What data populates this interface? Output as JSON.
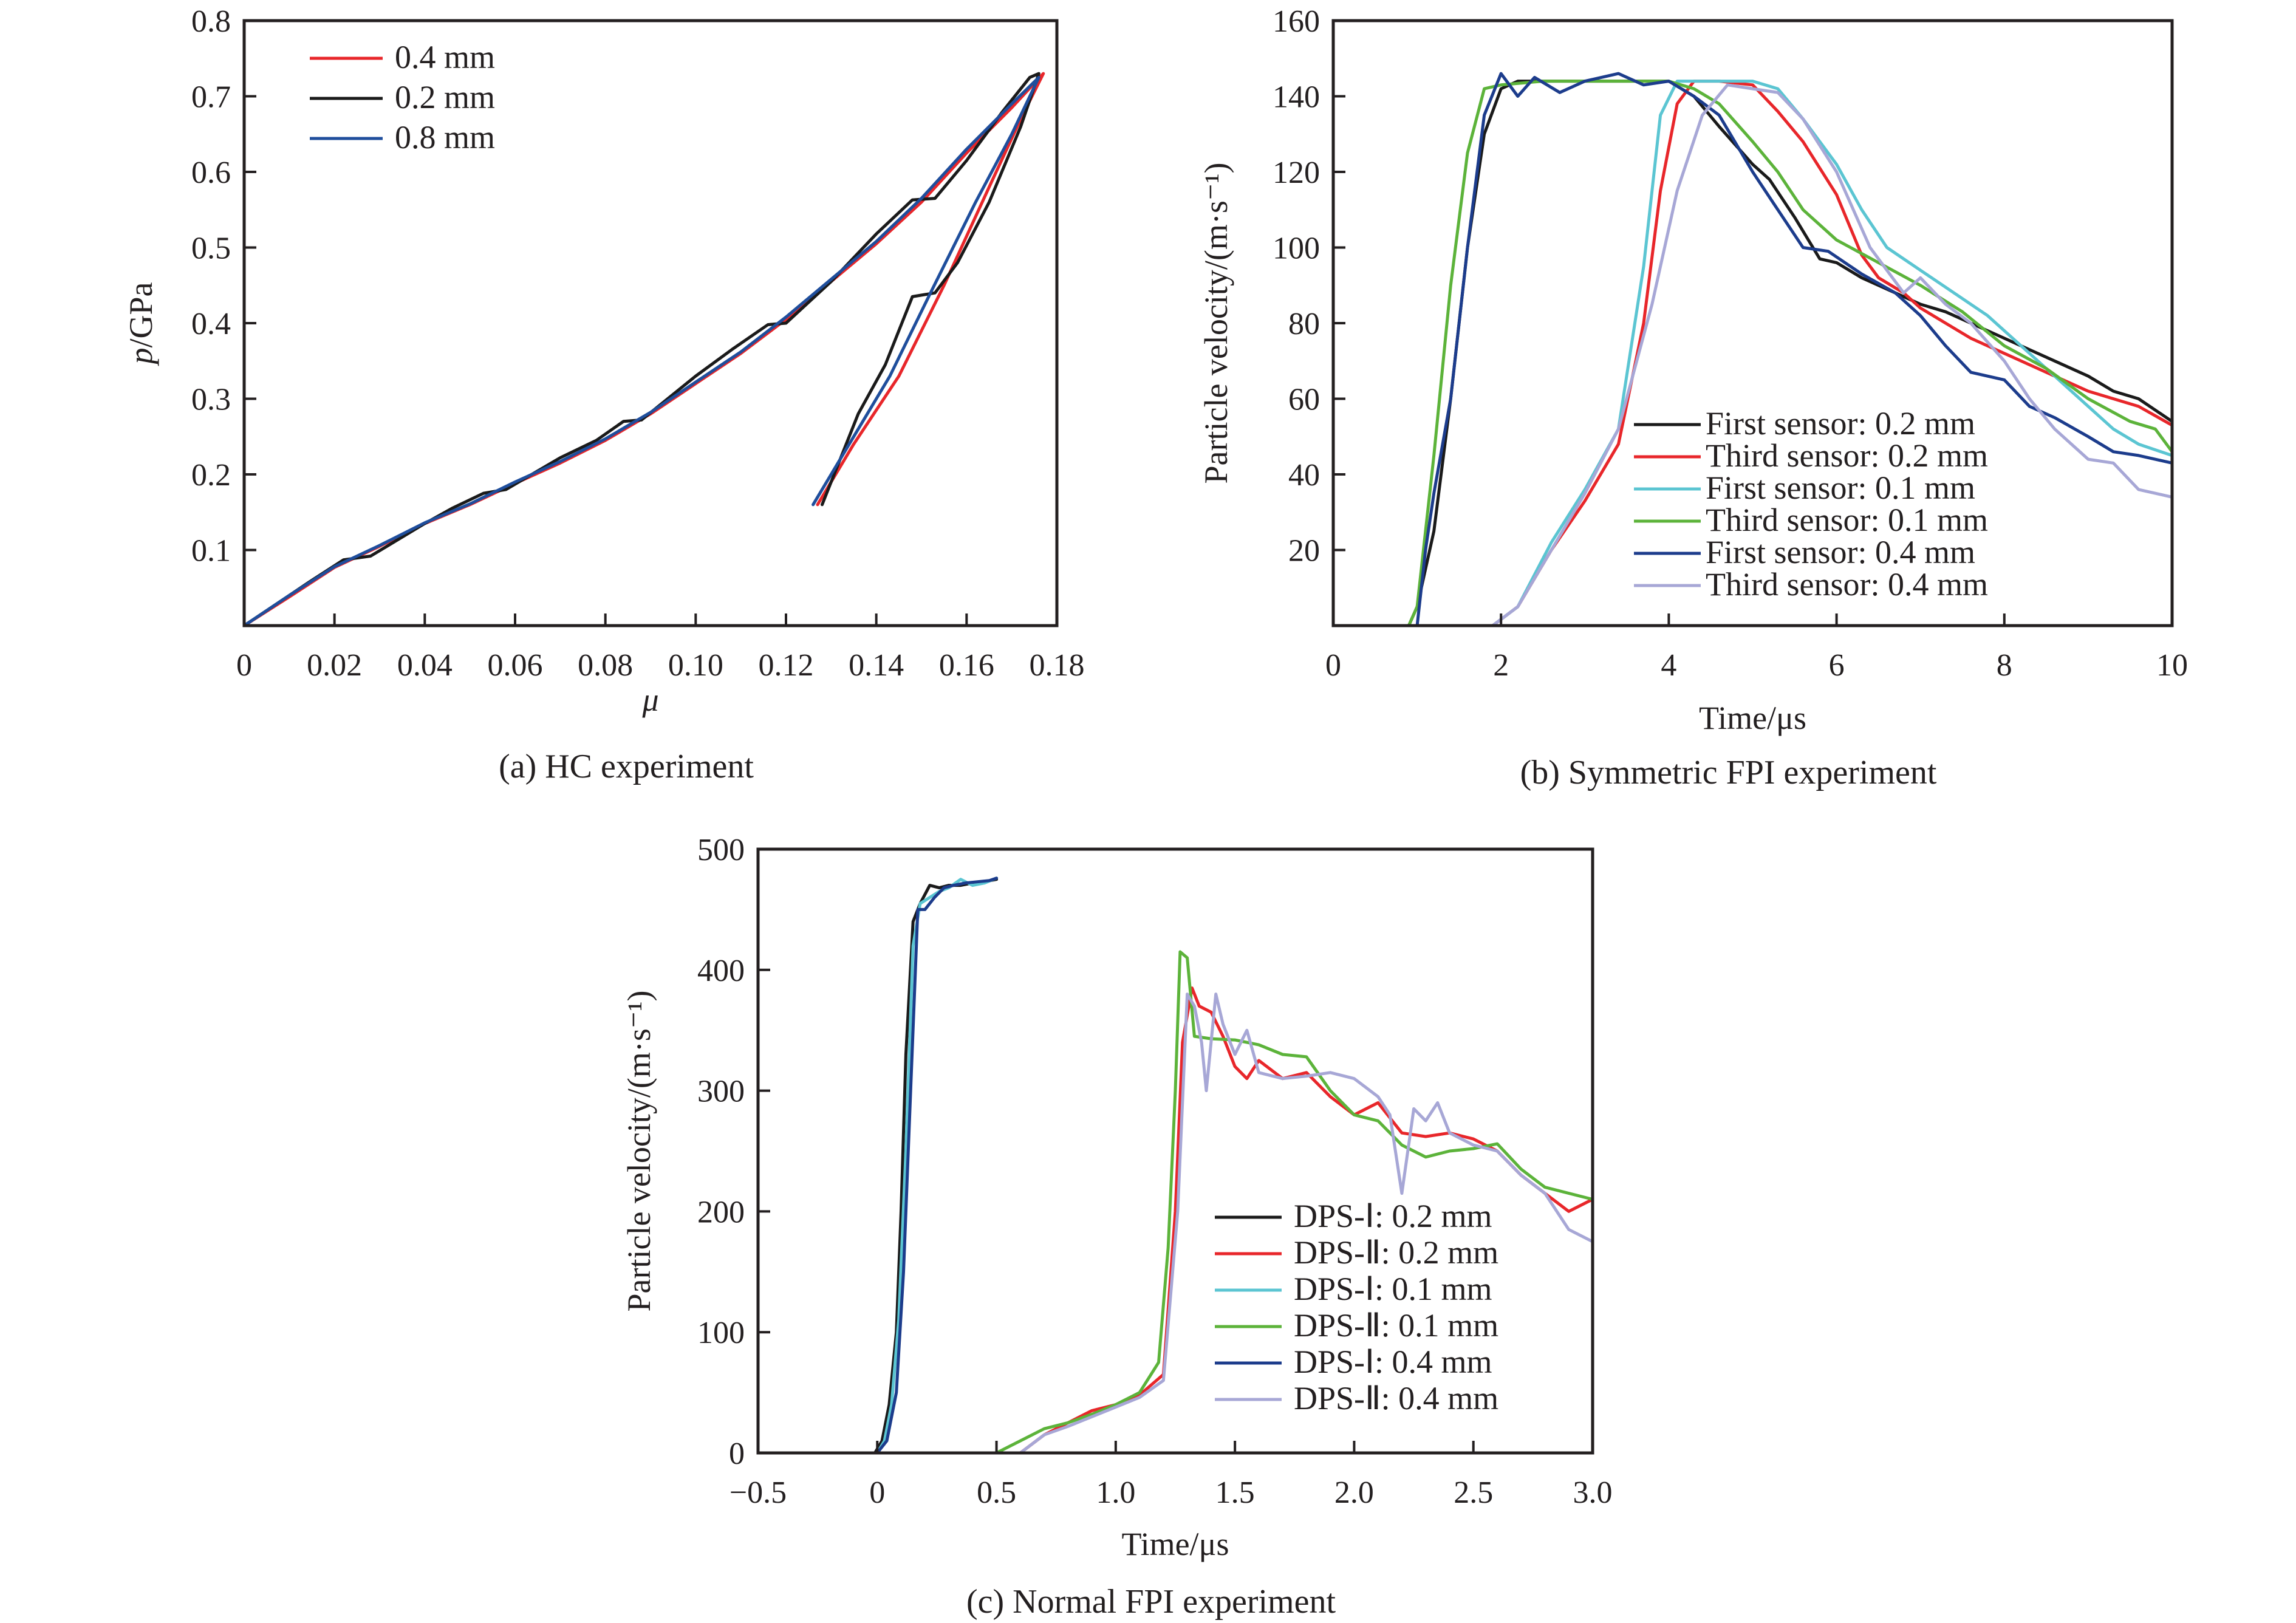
{
  "figure": {
    "colors": {
      "red": "#e8262a",
      "black": "#1a1a1a",
      "blue": "#1f4e9c",
      "cyan": "#5bc5d2",
      "green": "#5cb33a",
      "navy": "#1c3c8c",
      "lavender": "#a7a7d6",
      "axis": "#231f20"
    }
  },
  "chart_data": [
    {
      "id": "a",
      "type": "line",
      "caption": "(a) HC experiment",
      "title": "",
      "xlabel": "μ",
      "ylabel": "p/GPa",
      "ylabel_italic_part": "p",
      "ylabel_rest": "/GPa",
      "xlim": [
        0,
        0.18
      ],
      "ylim": [
        0,
        0.8
      ],
      "xticks": [
        0,
        0.02,
        0.04,
        0.06,
        0.08,
        0.1,
        0.12,
        0.14,
        0.16,
        0.18
      ],
      "xtick_labels": [
        "0",
        "0.02",
        "0.04",
        "0.06",
        "0.08",
        "0.10",
        "0.12",
        "0.14",
        "0.16",
        "0.18"
      ],
      "yticks": [
        0.1,
        0.2,
        0.3,
        0.4,
        0.5,
        0.6,
        0.7,
        0.8
      ],
      "ytick_labels": [
        "0.1",
        "0.2",
        "0.3",
        "0.4",
        "0.5",
        "0.6",
        "0.7",
        "0.8"
      ],
      "grid": false,
      "legend_position": "top-left",
      "series": [
        {
          "name": "0.4 mm",
          "color": "#e8262a",
          "x": [
            0,
            0.01,
            0.02,
            0.03,
            0.04,
            0.05,
            0.06,
            0.07,
            0.08,
            0.09,
            0.1,
            0.11,
            0.12,
            0.13,
            0.14,
            0.15,
            0.16,
            0.17,
            0.177,
            0.172,
            0.165,
            0.155,
            0.145,
            0.135,
            0.127
          ],
          "y": [
            0,
            0.038,
            0.077,
            0.105,
            0.135,
            0.16,
            0.188,
            0.215,
            0.245,
            0.28,
            0.32,
            0.36,
            0.405,
            0.455,
            0.505,
            0.56,
            0.625,
            0.685,
            0.73,
            0.67,
            0.58,
            0.45,
            0.33,
            0.24,
            0.16
          ]
        },
        {
          "name": "0.2 mm",
          "color": "#1a1a1a",
          "x": [
            0,
            0.01,
            0.015,
            0.022,
            0.028,
            0.04,
            0.046,
            0.053,
            0.058,
            0.07,
            0.078,
            0.084,
            0.088,
            0.1,
            0.108,
            0.116,
            0.12,
            0.13,
            0.14,
            0.148,
            0.153,
            0.16,
            0.168,
            0.174,
            0.176,
            0.172,
            0.165,
            0.158,
            0.153,
            0.148,
            0.142,
            0.136,
            0.128
          ],
          "y": [
            0,
            0.04,
            0.06,
            0.087,
            0.092,
            0.135,
            0.155,
            0.175,
            0.18,
            0.222,
            0.245,
            0.27,
            0.272,
            0.33,
            0.365,
            0.398,
            0.4,
            0.455,
            0.518,
            0.563,
            0.565,
            0.615,
            0.68,
            0.725,
            0.73,
            0.66,
            0.56,
            0.48,
            0.44,
            0.435,
            0.345,
            0.28,
            0.16
          ]
        },
        {
          "name": "0.8 mm",
          "color": "#1f4e9c",
          "x": [
            0,
            0.01,
            0.02,
            0.03,
            0.04,
            0.05,
            0.06,
            0.07,
            0.08,
            0.09,
            0.1,
            0.11,
            0.12,
            0.13,
            0.14,
            0.15,
            0.16,
            0.17,
            0.176,
            0.17,
            0.162,
            0.152,
            0.143,
            0.134,
            0.126
          ],
          "y": [
            0,
            0.04,
            0.078,
            0.106,
            0.136,
            0.161,
            0.19,
            0.217,
            0.247,
            0.282,
            0.322,
            0.362,
            0.408,
            0.458,
            0.508,
            0.565,
            0.63,
            0.69,
            0.725,
            0.65,
            0.56,
            0.44,
            0.33,
            0.24,
            0.16
          ]
        }
      ]
    },
    {
      "id": "b",
      "type": "line",
      "caption": "(b) Symmetric FPI experiment",
      "title": "",
      "xlabel": "Time/μs",
      "ylabel": "Particle velocity/(m·s⁻¹)",
      "xlim": [
        0,
        10
      ],
      "ylim": [
        0,
        160
      ],
      "xticks": [
        0,
        2,
        4,
        6,
        8,
        10
      ],
      "xtick_labels": [
        "0",
        "2",
        "4",
        "6",
        "8",
        "10"
      ],
      "yticks": [
        20,
        40,
        60,
        80,
        100,
        120,
        140,
        160
      ],
      "ytick_labels": [
        "20",
        "40",
        "60",
        "80",
        "100",
        "120",
        "140",
        "160"
      ],
      "grid": false,
      "legend_position": "bottom-right",
      "series": [
        {
          "name": "First sensor: 0.2 mm",
          "color": "#1a1a1a",
          "x": [
            0.8,
            0.9,
            1.0,
            1.2,
            1.4,
            1.6,
            1.8,
            2.0,
            2.2,
            2.5,
            3.0,
            3.5,
            4.0,
            4.3,
            4.6,
            5.0,
            5.2,
            5.5,
            5.8,
            6.0,
            6.3,
            6.7,
            7.0,
            7.3,
            7.6,
            8.0,
            8.3,
            8.6,
            9.0,
            9.3,
            9.6,
            10.0
          ],
          "y": [
            0,
            0,
            5,
            25,
            60,
            100,
            130,
            142,
            144,
            144,
            144,
            144,
            144,
            140,
            132,
            122,
            118,
            108,
            97,
            96,
            92,
            88,
            85,
            83,
            80,
            76,
            73,
            70,
            66,
            62,
            60,
            54
          ]
        },
        {
          "name": "Third sensor: 0.2 mm",
          "color": "#e8262a",
          "x": [
            1.9,
            2.2,
            2.6,
            3.0,
            3.4,
            3.7,
            3.9,
            4.1,
            4.3,
            4.6,
            5.0,
            5.3,
            5.6,
            6.0,
            6.3,
            6.5,
            6.8,
            7.0,
            7.3,
            7.6,
            8.0,
            8.3,
            8.6,
            9.0,
            9.3,
            9.6,
            10.0
          ],
          "y": [
            0,
            5,
            20,
            33,
            48,
            80,
            115,
            138,
            144,
            144,
            143,
            136,
            128,
            114,
            98,
            92,
            88,
            84,
            80,
            76,
            72,
            69,
            66,
            62,
            60,
            58,
            53
          ]
        },
        {
          "name": "First sensor: 0.1 mm",
          "color": "#5bc5d2",
          "x": [
            1.9,
            2.2,
            2.6,
            3.0,
            3.4,
            3.7,
            3.9,
            4.1,
            4.5,
            5.0,
            5.3,
            5.6,
            6.0,
            6.3,
            6.6,
            7.0,
            7.4,
            7.8,
            8.2,
            8.6,
            9.0,
            9.3,
            9.6,
            10.0
          ],
          "y": [
            0,
            5,
            22,
            36,
            52,
            95,
            135,
            144,
            144,
            144,
            142,
            134,
            122,
            110,
            100,
            94,
            88,
            82,
            74,
            66,
            58,
            52,
            48,
            45
          ]
        },
        {
          "name": "Third sensor: 0.1 mm",
          "color": "#5cb33a",
          "x": [
            0.6,
            0.9,
            1.0,
            1.2,
            1.4,
            1.6,
            1.8,
            2.0,
            2.5,
            3.0,
            3.5,
            4.0,
            4.3,
            4.6,
            5.0,
            5.3,
            5.6,
            6.0,
            6.5,
            7.0,
            7.5,
            8.0,
            8.5,
            9.0,
            9.5,
            9.8,
            10.0
          ],
          "y": [
            0,
            0,
            5,
            45,
            90,
            125,
            142,
            143,
            144,
            144,
            144,
            144,
            142,
            138,
            128,
            120,
            110,
            102,
            96,
            90,
            83,
            74,
            68,
            60,
            54,
            52,
            46
          ]
        },
        {
          "name": "First sensor: 0.4 mm",
          "color": "#1c3c8c",
          "x": [
            1.0,
            1.1,
            1.2,
            1.4,
            1.6,
            1.8,
            2.0,
            2.2,
            2.4,
            2.7,
            3.0,
            3.4,
            3.7,
            4.0,
            4.3,
            4.6,
            5.0,
            5.3,
            5.6,
            5.9,
            6.3,
            6.7,
            7.0,
            7.3,
            7.6,
            8.0,
            8.3,
            8.6,
            9.0,
            9.3,
            9.6,
            10.0
          ],
          "y": [
            0,
            20,
            35,
            60,
            100,
            135,
            146,
            140,
            145,
            141,
            144,
            146,
            143,
            144,
            140,
            135,
            120,
            110,
            100,
            99,
            93,
            88,
            82,
            74,
            67,
            65,
            58,
            55,
            50,
            46,
            45,
            43
          ]
        },
        {
          "name": "Third sensor: 0.4 mm",
          "color": "#a7a7d6",
          "x": [
            1.9,
            2.2,
            2.6,
            3.0,
            3.4,
            3.8,
            4.1,
            4.4,
            4.7,
            5.0,
            5.3,
            5.6,
            6.0,
            6.4,
            6.8,
            7.0,
            7.3,
            7.6,
            8.0,
            8.3,
            8.6,
            9.0,
            9.3,
            9.6,
            10.0
          ],
          "y": [
            0,
            5,
            20,
            35,
            52,
            85,
            115,
            135,
            143,
            142,
            141,
            134,
            120,
            100,
            88,
            92,
            85,
            80,
            70,
            60,
            52,
            44,
            43,
            36,
            34
          ]
        }
      ]
    },
    {
      "id": "c",
      "type": "line",
      "caption": "(c) Normal FPI experiment",
      "title": "",
      "xlabel": "Time/μs",
      "ylabel": "Particle velocity/(m·s⁻¹)",
      "xlim": [
        -0.5,
        3.0
      ],
      "ylim": [
        0,
        500
      ],
      "xticks": [
        -0.5,
        0,
        0.5,
        1.0,
        1.5,
        2.0,
        2.5,
        3.0
      ],
      "xtick_labels": [
        "−0.5",
        "0",
        "0.5",
        "1.0",
        "1.5",
        "2.0",
        "2.5",
        "3.0"
      ],
      "yticks": [
        0,
        100,
        200,
        300,
        400,
        500
      ],
      "ytick_labels": [
        "0",
        "100",
        "200",
        "300",
        "400",
        "500"
      ],
      "grid": false,
      "legend_position": "bottom-right",
      "series": [
        {
          "name": "DPS-Ⅰ: 0.2 mm",
          "color": "#1a1a1a",
          "x": [
            -0.01,
            0.02,
            0.05,
            0.08,
            0.1,
            0.12,
            0.15,
            0.18,
            0.22,
            0.26,
            0.3,
            0.35,
            0.4,
            0.45,
            0.5
          ],
          "y": [
            0,
            10,
            40,
            100,
            200,
            330,
            440,
            455,
            470,
            468,
            470,
            470,
            472,
            473,
            475
          ]
        },
        {
          "name": "DPS-Ⅱ: 0.2 mm",
          "color": "#e8262a",
          "x": [
            0.5,
            0.6,
            0.7,
            0.8,
            0.9,
            1.0,
            1.1,
            1.2,
            1.25,
            1.28,
            1.32,
            1.35,
            1.4,
            1.45,
            1.5,
            1.55,
            1.6,
            1.7,
            1.8,
            1.9,
            2.0,
            2.1,
            2.2,
            2.3,
            2.4,
            2.5,
            2.6,
            2.7,
            2.8,
            2.9,
            3.0
          ],
          "y": [
            0,
            0,
            15,
            25,
            35,
            40,
            48,
            65,
            200,
            340,
            385,
            370,
            365,
            345,
            320,
            310,
            325,
            310,
            315,
            295,
            280,
            290,
            265,
            262,
            265,
            260,
            250,
            230,
            215,
            200,
            210
          ]
        },
        {
          "name": "DPS-Ⅰ: 0.1 mm",
          "color": "#5bc5d2",
          "x": [
            0.0,
            0.03,
            0.06,
            0.09,
            0.12,
            0.15,
            0.18,
            0.22,
            0.26,
            0.3,
            0.35,
            0.4,
            0.45,
            0.5
          ],
          "y": [
            0,
            10,
            40,
            110,
            250,
            420,
            455,
            460,
            465,
            468,
            475,
            470,
            472,
            476
          ]
        },
        {
          "name": "DPS-Ⅱ: 0.1 mm",
          "color": "#5cb33a",
          "x": [
            0.5,
            0.6,
            0.7,
            0.8,
            0.9,
            1.0,
            1.1,
            1.18,
            1.22,
            1.25,
            1.27,
            1.3,
            1.33,
            1.4,
            1.5,
            1.6,
            1.7,
            1.8,
            1.9,
            2.0,
            2.1,
            2.2,
            2.3,
            2.4,
            2.5,
            2.6,
            2.7,
            2.8,
            3.0
          ],
          "y": [
            0,
            10,
            20,
            25,
            32,
            40,
            50,
            75,
            170,
            300,
            415,
            410,
            345,
            343,
            342,
            338,
            330,
            328,
            300,
            280,
            275,
            255,
            245,
            250,
            252,
            256,
            235,
            220,
            210
          ]
        },
        {
          "name": "DPS-Ⅰ: 0.4 mm",
          "color": "#1c3c8c",
          "x": [
            0.0,
            0.04,
            0.08,
            0.11,
            0.14,
            0.17,
            0.2,
            0.24,
            0.28,
            0.32,
            0.37,
            0.42,
            0.47,
            0.5
          ],
          "y": [
            0,
            10,
            50,
            150,
            300,
            450,
            450,
            460,
            468,
            470,
            472,
            473,
            474,
            476
          ]
        },
        {
          "name": "DPS-Ⅱ: 0.4 mm",
          "color": "#a7a7d6",
          "x": [
            0.5,
            0.6,
            0.7,
            0.8,
            0.9,
            1.0,
            1.1,
            1.2,
            1.26,
            1.3,
            1.33,
            1.36,
            1.38,
            1.42,
            1.45,
            1.5,
            1.55,
            1.6,
            1.7,
            1.8,
            1.9,
            2.0,
            2.1,
            2.15,
            2.2,
            2.25,
            2.3,
            2.35,
            2.4,
            2.5,
            2.6,
            2.7,
            2.8,
            2.9,
            3.0
          ],
          "y": [
            0,
            0,
            15,
            22,
            30,
            38,
            46,
            60,
            200,
            380,
            370,
            340,
            300,
            380,
            355,
            330,
            350,
            315,
            310,
            312,
            315,
            310,
            295,
            280,
            215,
            285,
            275,
            290,
            265,
            255,
            250,
            230,
            215,
            185,
            175
          ]
        }
      ]
    }
  ]
}
